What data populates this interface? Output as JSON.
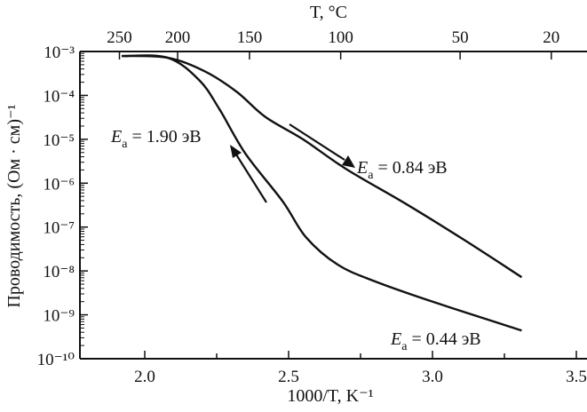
{
  "chart_data": {
    "type": "line",
    "xlabel": "1000/T, K⁻¹",
    "ylabel": "Проводимость, (Ом · см)⁻¹",
    "top_axis_label": "T, °C",
    "x_ticks": [
      "2.0",
      "2.5",
      "3.0",
      "3.5"
    ],
    "x_tick_values": [
      2.0,
      2.5,
      3.0,
      3.5
    ],
    "xlim": [
      1.77,
      3.5
    ],
    "y_scale": "log",
    "ylim": [
      1e-10,
      0.001
    ],
    "y_ticks": [
      "10⁻³",
      "10⁻⁴",
      "10⁻⁵",
      "10⁻⁶",
      "10⁻⁷",
      "10⁻⁸",
      "10⁻⁹",
      "10⁻¹⁰"
    ],
    "y_tick_values": [
      0.001,
      0.0001,
      1e-05,
      1e-06,
      1e-07,
      1e-08,
      1e-09,
      1e-10
    ],
    "top_ticks": [
      "250",
      "200",
      "150",
      "100",
      "50",
      "20"
    ],
    "top_tick_values_celsius": [
      250,
      200,
      150,
      100,
      50,
      20
    ],
    "grid": false,
    "series": [
      {
        "x": [
          1.92,
          2.08,
          2.21,
          2.32,
          2.42,
          2.55,
          2.7,
          2.91,
          3.11,
          3.31
        ],
        "y": [
          0.00079,
          0.00072,
          0.00035,
          0.00012,
          3.2e-05,
          1e-05,
          2.1e-06,
          3.3e-07,
          5.1e-08,
          7.2e-09
        ]
      },
      {
        "x": [
          1.92,
          2.08,
          2.19,
          2.26,
          2.35,
          2.48,
          2.56,
          2.67,
          2.8,
          3.01,
          3.31
        ],
        "y": [
          0.00079,
          0.00072,
          0.00022,
          4.8e-05,
          4.7e-06,
          3.8e-07,
          5.9e-08,
          1.4e-08,
          5.8e-09,
          1.9e-09,
          4.4e-10
        ]
      }
    ],
    "annotations": [
      {
        "text_main": "E",
        "text_sub": "a",
        "text_rest": " = 1.90 эВ"
      },
      {
        "text_main": "E",
        "text_sub": "a",
        "text_rest": " = 0.84 эВ"
      },
      {
        "text_main": "E",
        "text_sub": "a",
        "text_rest": " = 0.44 эВ"
      }
    ],
    "line_color": "#111111"
  }
}
